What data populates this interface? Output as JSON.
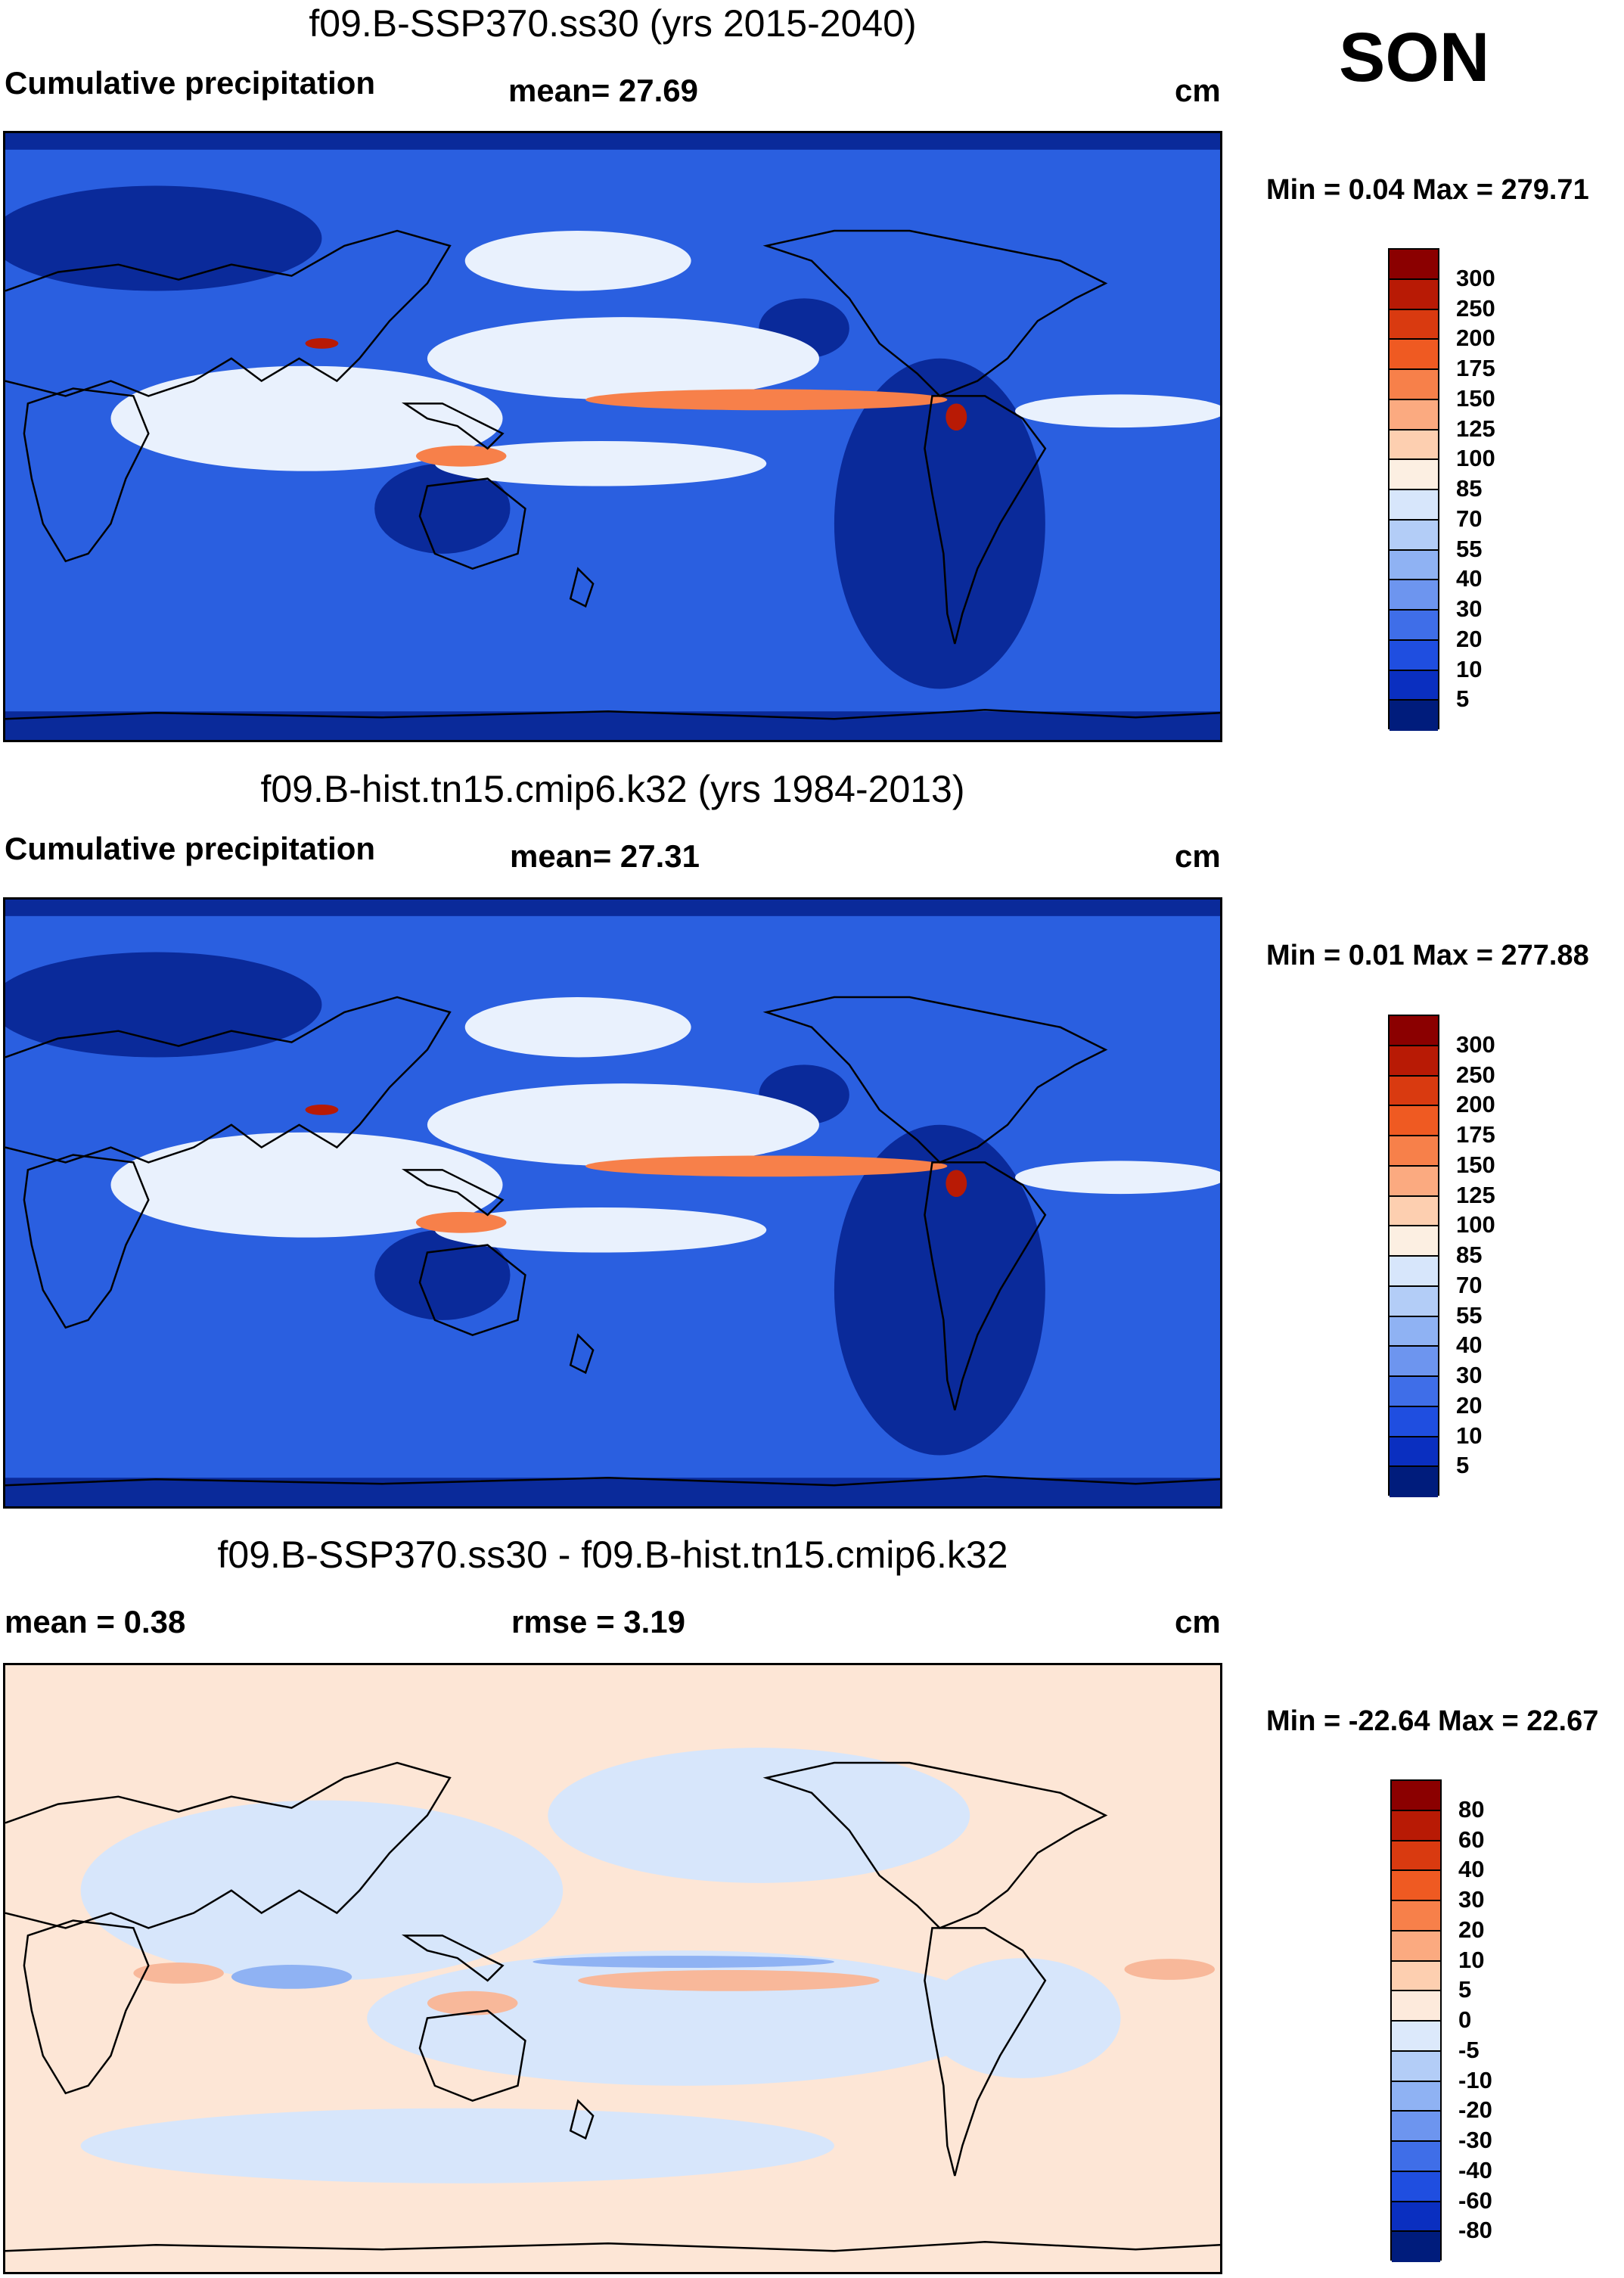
{
  "season": "SON",
  "panels": [
    {
      "title": "f09.B-SSP370.ss30 (yrs 2015-2040)",
      "left_label": "Cumulative precipitation",
      "stat_label": "mean=  27.69",
      "units": "cm",
      "minmax": "Min =   0.04 Max = 279.71",
      "scheme": "abs"
    },
    {
      "title": "f09.B-hist.tn15.cmip6.k32 (yrs 1984-2013)",
      "left_label": "Cumulative precipitation",
      "stat_label": "mean=  27.31",
      "units": "cm",
      "minmax": "Min =   0.01 Max = 277.88",
      "scheme": "abs"
    },
    {
      "title": "f09.B-SSP370.ss30 - f09.B-hist.tn15.cmip6.k32",
      "left_label": "mean =   0.38",
      "stat_label": "rmse =   3.19",
      "units": "cm",
      "minmax": "Min = -22.64 Max =  22.67",
      "scheme": "diff"
    }
  ],
  "colorbars": {
    "abs": {
      "levels": [
        "300",
        "250",
        "200",
        "175",
        "150",
        "125",
        "100",
        "85",
        "70",
        "55",
        "40",
        "30",
        "20",
        "10",
        "5"
      ],
      "colors": [
        "#8b0000",
        "#b81a05",
        "#d93a10",
        "#ef5a22",
        "#f7804a",
        "#fbaa80",
        "#fdcfb0",
        "#fcefe2",
        "#d7e6fb",
        "#b3cdf7",
        "#8fb2f3",
        "#6d95ef",
        "#3f6ee8",
        "#1f4ee0",
        "#0a2fc0",
        "#001c7c"
      ]
    },
    "diff": {
      "levels": [
        "80",
        "60",
        "40",
        "30",
        "20",
        "10",
        "5",
        "0",
        "-5",
        "-10",
        "-20",
        "-30",
        "-40",
        "-60",
        "-80"
      ],
      "colors": [
        "#8b0000",
        "#b81a05",
        "#d93a10",
        "#ef5a22",
        "#f7804a",
        "#fbaa80",
        "#fdcfb0",
        "#fdeadc",
        "#dce9fb",
        "#b3cdf7",
        "#8fb2f3",
        "#6d95ef",
        "#3f6ee8",
        "#1f4ee0",
        "#0a2fc0",
        "#001c7c"
      ]
    }
  },
  "map_colors": {
    "abs_background": "#2a5fe0",
    "abs_dry": "#0a2a9a",
    "abs_wet": "#e9f1fd",
    "abs_itcz": "#f7804a",
    "abs_peak": "#b81a05",
    "diff_background": "#fde6d6",
    "diff_neg": "#d7e6fb",
    "diff_negstrong": "#8fb2f3",
    "diff_pos": "#f8b89a"
  }
}
